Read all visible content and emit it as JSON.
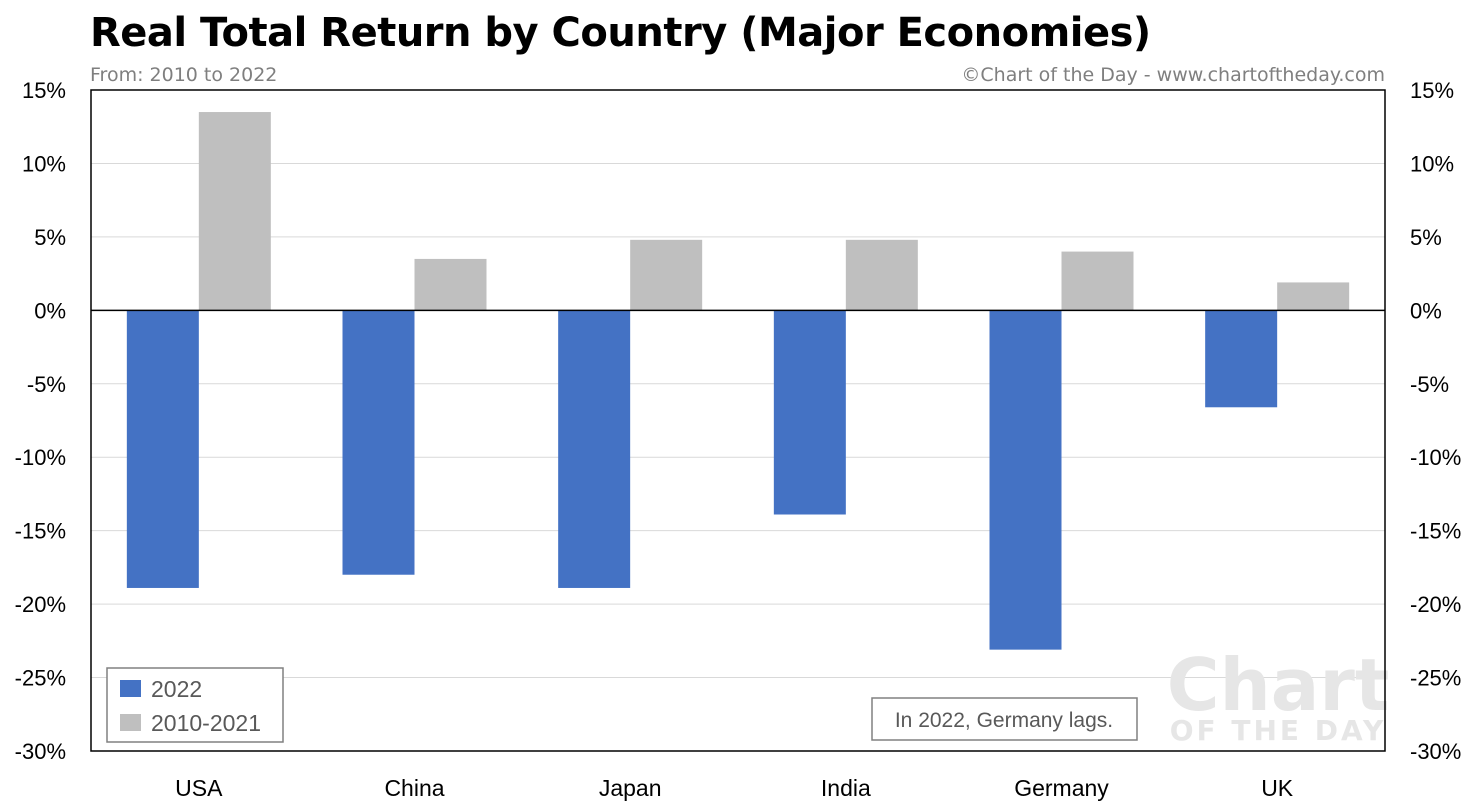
{
  "title": "Real Total Return by Country (Major Economies)",
  "subtitle": "From: 2010 to 2022",
  "credit": "©Chart of the Day - www.chartoftheday.com",
  "note": "In 2022, Germany lags.",
  "watermark": {
    "line1": "Chart",
    "line2": "OF THE DAY"
  },
  "colors": {
    "series_2022": "#4472c4",
    "series_2010_2021": "#bfbfbf",
    "gridline": "#d9d9d9",
    "axis": "#000000"
  },
  "chart_data": {
    "type": "bar",
    "categories": [
      "USA",
      "China",
      "Japan",
      "India",
      "Germany",
      "UK"
    ],
    "series": [
      {
        "name": "2022",
        "values": [
          -18.9,
          -18.0,
          -18.9,
          -13.9,
          -23.1,
          -6.6
        ]
      },
      {
        "name": "2010-2021",
        "values": [
          13.5,
          3.5,
          4.8,
          4.8,
          4.0,
          1.9
        ]
      }
    ],
    "ylim": [
      -30,
      15
    ],
    "yticks": [
      15,
      10,
      5,
      0,
      -5,
      -10,
      -15,
      -20,
      -25,
      -30
    ],
    "ytick_labels": [
      "15%",
      "10%",
      "5%",
      "0%",
      "-5%",
      "-10%",
      "-15%",
      "-20%",
      "-25%",
      "-30%"
    ],
    "grid": true,
    "legend_position": "bottom-left",
    "secondary_axis": true
  }
}
